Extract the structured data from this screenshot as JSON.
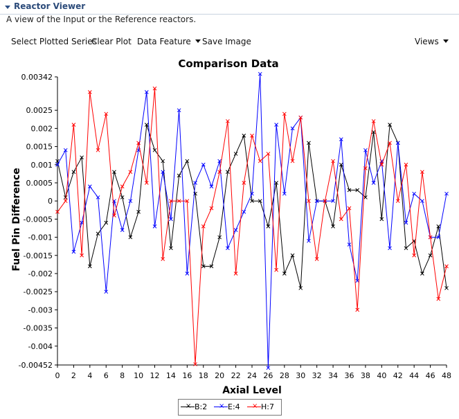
{
  "panel": {
    "title": "Reactor Viewer",
    "description": "A view of the Input or the Reference reactors."
  },
  "toolbar": {
    "select_series": "Select Plotted Series",
    "clear_plot": "Clear Plot",
    "data_feature": "Data Feature",
    "save_image": "Save Image",
    "views": "Views"
  },
  "chart_data": {
    "type": "line",
    "title": "Comparison Data",
    "xlabel": "Axial Level",
    "ylabel": "Fuel Pin Difference",
    "xlim": [
      0,
      48
    ],
    "ylim": [
      -0.00452,
      0.00342
    ],
    "x_ticks": [
      "0",
      "2",
      "4",
      "6",
      "8",
      "10",
      "12",
      "14",
      "16",
      "18",
      "20",
      "22",
      "24",
      "26",
      "28",
      "30",
      "32",
      "34",
      "36",
      "38",
      "40",
      "42",
      "44",
      "46",
      "48"
    ],
    "y_ticks": [
      "0.00342",
      "0.0025",
      "0.002",
      "0.0015",
      "0.001",
      "0.0005",
      "0",
      "-0.0005",
      "-0.001",
      "-0.0015",
      "-0.002",
      "-0.0025",
      "-0.003",
      "-0.0035",
      "-0.004",
      "-0.00452"
    ],
    "y_tick_values": [
      0.00342,
      0.0025,
      0.002,
      0.0015,
      0.001,
      0.0005,
      0,
      -0.0005,
      -0.001,
      -0.0015,
      -0.002,
      -0.0025,
      -0.003,
      -0.0035,
      -0.004,
      -0.00452
    ],
    "grid": false,
    "legend_position": "bottom-center",
    "x": [
      0,
      1,
      2,
      3,
      4,
      5,
      6,
      7,
      8,
      9,
      10,
      11,
      12,
      13,
      14,
      15,
      16,
      17,
      18,
      19,
      20,
      21,
      22,
      23,
      24,
      25,
      26,
      27,
      28,
      29,
      30,
      31,
      32,
      33,
      34,
      35,
      36,
      37,
      38,
      39,
      40,
      41,
      42,
      43,
      44,
      45,
      46,
      47,
      48
    ],
    "series": [
      {
        "name": "B:2",
        "color": "#000000",
        "values": [
          0.0011,
          0.0001,
          0.0008,
          0.0012,
          -0.0018,
          -0.0009,
          -0.0006,
          0.0008,
          0.0001,
          -0.001,
          -0.0003,
          0.0021,
          0.0014,
          0.0011,
          -0.0013,
          0.0007,
          0.0011,
          0.0002,
          -0.0018,
          -0.0018,
          -0.001,
          0.0008,
          0.0013,
          0.0018,
          0.0,
          0.0,
          -0.0007,
          0.0005,
          -0.002,
          -0.0015,
          -0.0024,
          0.0016,
          0.0,
          0.0,
          -0.0007,
          0.001,
          0.0003,
          0.0003,
          0.0001,
          0.0019,
          -0.0005,
          0.0021,
          0.0016,
          -0.0013,
          -0.0011,
          -0.002,
          -0.0015,
          -0.0007,
          -0.0024
        ]
      },
      {
        "name": "E:4",
        "color": "#0000ff",
        "values": [
          0.001,
          0.0014,
          -0.0014,
          -0.0006,
          0.0004,
          0.0001,
          -0.0025,
          0.0,
          -0.0008,
          0.0,
          0.0014,
          0.003,
          -0.0007,
          0.0008,
          -0.0005,
          0.0025,
          -0.002,
          0.0005,
          0.001,
          0.0004,
          0.0011,
          -0.0013,
          -0.0008,
          -0.0003,
          0.0002,
          0.0035,
          -0.0046,
          0.0021,
          0.0002,
          0.002,
          0.0023,
          -0.0011,
          0.0,
          0.0,
          0.0,
          0.0017,
          -0.0012,
          -0.0022,
          0.0014,
          0.0005,
          0.0011,
          -0.0013,
          0.0016,
          -0.0006,
          0.0002,
          0.0,
          -0.001,
          -0.001,
          0.0002
        ]
      },
      {
        "name": "H:7",
        "color": "#ff0000",
        "values": [
          -0.0003,
          0.0,
          0.0021,
          -0.0015,
          0.003,
          0.0014,
          0.0024,
          -0.0004,
          0.0004,
          0.0008,
          0.0016,
          0.0005,
          0.0031,
          -0.0016,
          0.0,
          0.0,
          0.0,
          -0.0045,
          -0.0007,
          -0.0002,
          0.0008,
          0.0022,
          -0.002,
          0.0005,
          0.0018,
          0.0011,
          0.0013,
          -0.0019,
          0.0024,
          0.0011,
          0.0023,
          0.0,
          -0.0016,
          0.0,
          0.0011,
          -0.0005,
          -0.0002,
          -0.003,
          0.0009,
          0.0022,
          0.001,
          0.0016,
          0.0,
          0.001,
          -0.0015,
          0.0008,
          -0.001,
          -0.0027,
          -0.0018
        ]
      }
    ]
  }
}
